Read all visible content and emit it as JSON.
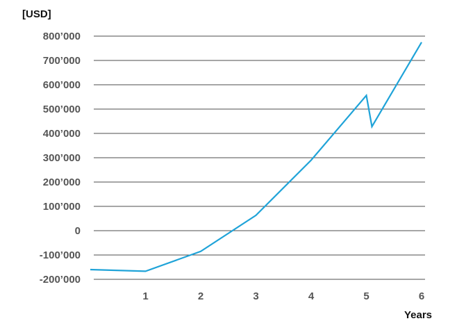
{
  "chart_data": {
    "type": "line",
    "title": "",
    "ylabel": "[USD]",
    "xlabel": "Years",
    "x": [
      0,
      1,
      2,
      3,
      4,
      5,
      5.1,
      6
    ],
    "series": [
      {
        "values": [
          -160000,
          -167000,
          -85000,
          63000,
          290000,
          556000,
          428000,
          775000
        ],
        "color": "#1fa3d8"
      }
    ],
    "xlim": [
      0,
      6
    ],
    "ylim": [
      -200000,
      800000
    ],
    "y_ticks": [
      {
        "value": 800000,
        "label": "800’000"
      },
      {
        "value": 700000,
        "label": "700’000"
      },
      {
        "value": 600000,
        "label": "600’000"
      },
      {
        "value": 500000,
        "label": "500’000"
      },
      {
        "value": 400000,
        "label": "400’000"
      },
      {
        "value": 300000,
        "label": "300’000"
      },
      {
        "value": 200000,
        "label": "200’000"
      },
      {
        "value": 100000,
        "label": "100’000"
      },
      {
        "value": 0,
        "label": "0"
      },
      {
        "value": -100000,
        "label": "-100’000"
      },
      {
        "value": -200000,
        "label": "-200’000"
      }
    ],
    "x_ticks": [
      {
        "value": 1,
        "label": "1"
      },
      {
        "value": 2,
        "label": "2"
      },
      {
        "value": 3,
        "label": "3"
      },
      {
        "value": 4,
        "label": "4"
      },
      {
        "value": 5,
        "label": "5"
      },
      {
        "value": 6,
        "label": "6"
      }
    ],
    "grid": true,
    "legend": "none"
  }
}
